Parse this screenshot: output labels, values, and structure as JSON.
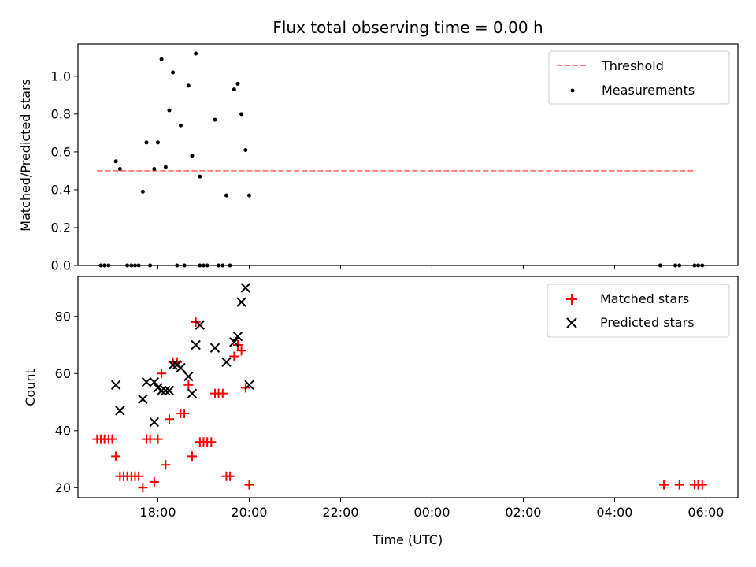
{
  "chart_data": [
    {
      "type": "scatter",
      "title": "Flux total observing time = 0.00 h",
      "ylabel": "Matched/Predicted stars",
      "xlabel": "",
      "x_unit": "hours since 00:00 UTC of first night",
      "xlim": [
        16.25,
        30.7
      ],
      "ylim": [
        0,
        1.17
      ],
      "yticks": [
        0.0,
        0.2,
        0.4,
        0.6,
        0.8,
        1.0
      ],
      "ytick_labels": [
        "0.0",
        "0.2",
        "0.4",
        "0.6",
        "0.8",
        "1.0"
      ],
      "grid": false,
      "legend_position": "top-right",
      "series": [
        {
          "name": "Threshold",
          "kind": "line",
          "style": "dashed",
          "color": "#ff7f7f",
          "x": [
            16.67,
            29.78
          ],
          "y": [
            0.5,
            0.5
          ]
        },
        {
          "name": "Measurements",
          "kind": "scatter",
          "color": "#000000",
          "x": [
            16.75,
            16.83,
            16.92,
            17.33,
            17.42,
            17.5,
            17.58,
            17.83,
            18.42,
            18.58,
            18.92,
            19.0,
            19.08,
            19.33,
            19.42,
            19.58,
            29.42,
            29.75,
            29.83,
            29.92,
            29.33,
            29.0,
            17.08,
            17.17,
            17.67,
            17.75,
            17.92,
            18.0,
            18.08,
            18.17,
            18.25,
            18.33,
            18.5,
            18.67,
            18.75,
            18.83,
            18.92,
            19.25,
            19.5,
            19.67,
            19.75,
            19.83,
            19.92,
            20.0
          ],
          "y": [
            0,
            0,
            0,
            0,
            0,
            0,
            0,
            0,
            0,
            0,
            0,
            0,
            0,
            0,
            0,
            0,
            0,
            0,
            0,
            0,
            0,
            0,
            0.55,
            0.51,
            0.39,
            0.65,
            0.51,
            0.65,
            1.09,
            0.52,
            0.82,
            1.02,
            0.74,
            0.95,
            0.58,
            1.12,
            0.47,
            0.77,
            0.37,
            0.93,
            0.96,
            0.8,
            0.61,
            0.37
          ]
        }
      ]
    },
    {
      "type": "scatter",
      "title": "",
      "ylabel": "Count",
      "xlabel": "Time (UTC)",
      "x_unit": "hours since 00:00 UTC of first night",
      "xlim": [
        16.25,
        30.7
      ],
      "ylim": [
        16.5,
        94
      ],
      "yticks": [
        20,
        40,
        60,
        80
      ],
      "ytick_labels": [
        "20",
        "40",
        "60",
        "80"
      ],
      "xticks": [
        18,
        20,
        22,
        24,
        26,
        28,
        30
      ],
      "xtick_labels": [
        "18:00",
        "20:00",
        "22:00",
        "00:00",
        "02:00",
        "04:00",
        "06:00"
      ],
      "grid": false,
      "legend_position": "top-right",
      "series": [
        {
          "name": "Matched stars",
          "kind": "scatter",
          "marker": "plus",
          "color": "#ff0000",
          "x": [
            16.67,
            16.75,
            16.83,
            16.92,
            17.0,
            17.08,
            17.17,
            17.25,
            17.33,
            17.42,
            17.5,
            17.58,
            17.67,
            17.75,
            17.83,
            17.92,
            18.0,
            18.08,
            18.17,
            18.25,
            18.33,
            18.42,
            18.5,
            18.58,
            18.67,
            18.75,
            18.83,
            18.92,
            19.0,
            19.08,
            19.17,
            19.25,
            19.33,
            19.42,
            19.5,
            19.58,
            19.67,
            19.75,
            19.83,
            19.92,
            20.0,
            29.08,
            29.42,
            29.75,
            29.83,
            29.92
          ],
          "y": [
            37,
            37,
            37,
            37,
            37,
            31,
            24,
            24,
            24,
            24,
            24,
            24,
            20,
            37,
            37,
            22,
            37,
            60,
            28,
            44,
            64,
            64,
            46,
            46,
            56,
            31,
            78,
            36,
            36,
            36,
            36,
            53,
            53,
            53,
            24,
            24,
            66,
            70,
            68,
            55,
            21,
            21,
            21,
            21,
            21,
            21
          ]
        },
        {
          "name": "Predicted stars",
          "kind": "scatter",
          "marker": "cross",
          "color": "#000000",
          "x": [
            17.08,
            17.17,
            17.67,
            17.75,
            17.92,
            17.92,
            18.0,
            18.08,
            18.17,
            18.25,
            18.33,
            18.42,
            18.5,
            18.67,
            18.75,
            18.83,
            18.92,
            19.25,
            19.5,
            19.67,
            19.75,
            19.83,
            19.92,
            20.0
          ],
          "y": [
            56,
            47,
            51,
            57,
            43,
            57,
            55,
            54,
            54,
            54,
            63,
            63,
            62,
            59,
            53,
            70,
            77,
            69,
            64,
            71,
            73,
            85,
            90,
            56
          ]
        }
      ]
    }
  ]
}
